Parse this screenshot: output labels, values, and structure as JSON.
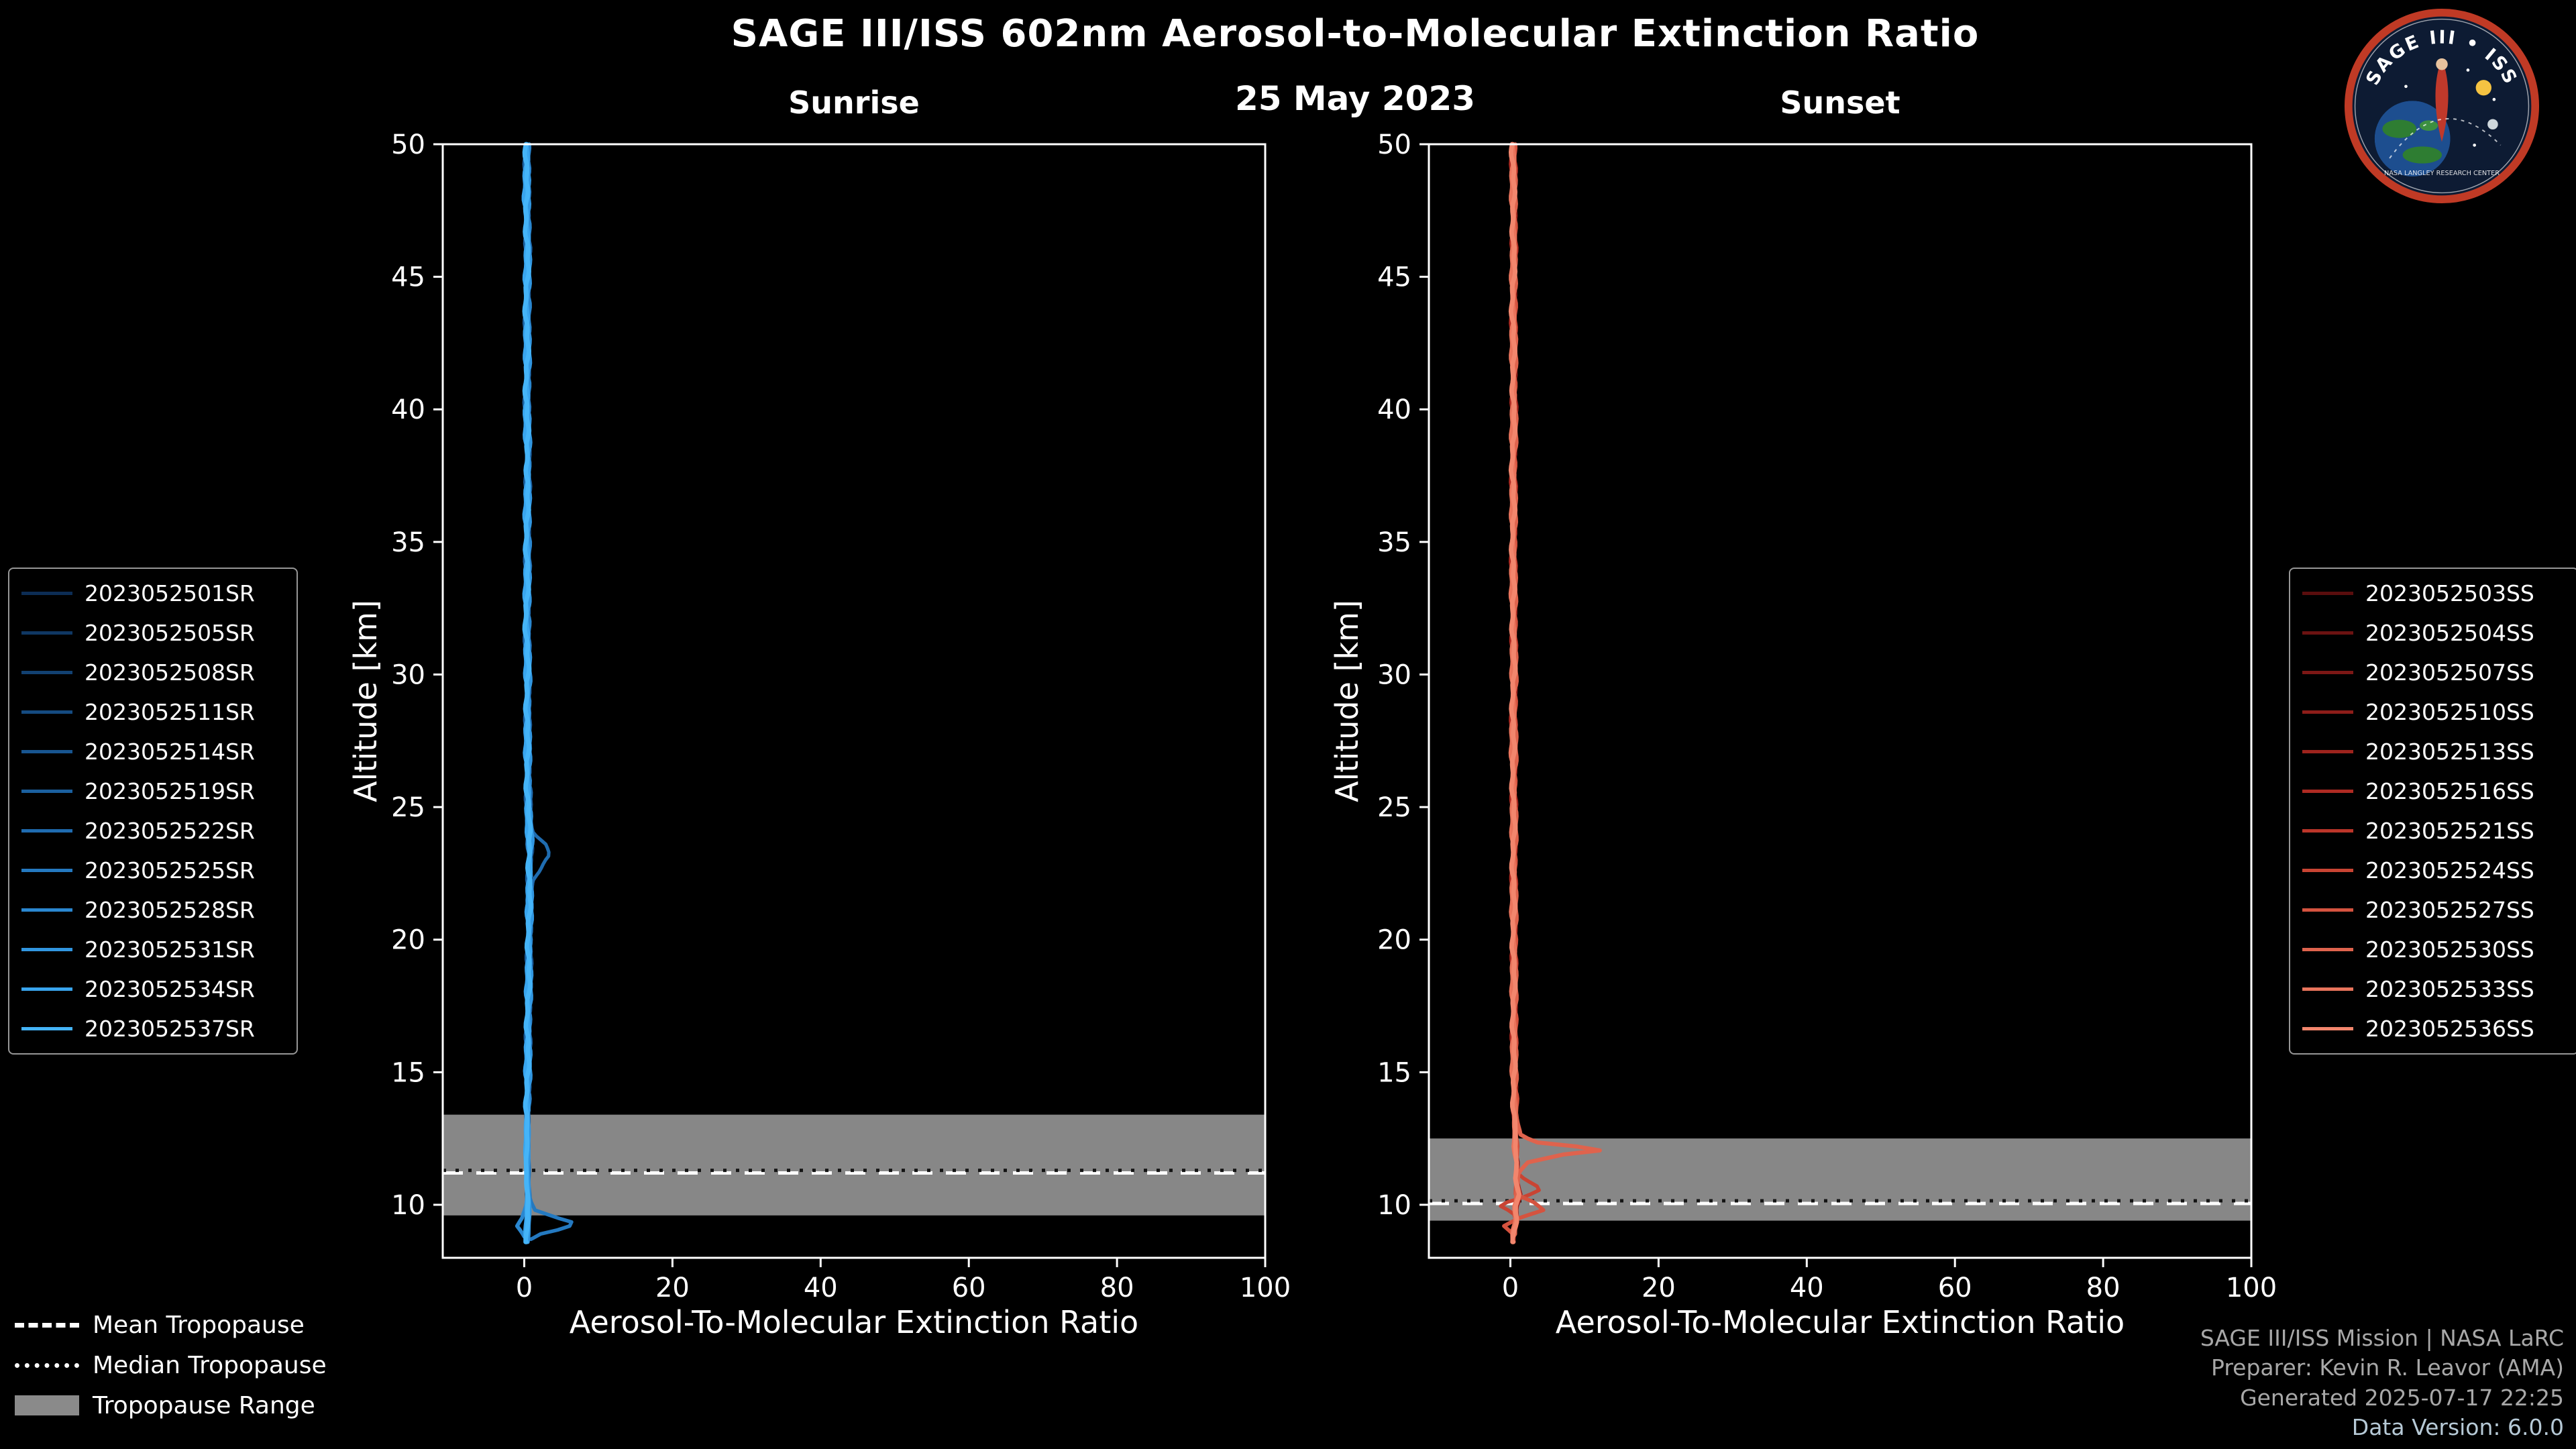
{
  "header": {
    "title": "SAGE III/ISS 602nm Aerosol-to-Molecular Extinction Ratio",
    "date": "25 May 2023"
  },
  "legend": {
    "mean": "Mean Tropopause",
    "median": "Median Tropopause",
    "range": "Tropopause Range"
  },
  "credits": {
    "mission": "SAGE III/ISS Mission | NASA LaRC",
    "preparer": "Preparer: Kevin R. Leavor (AMA)",
    "generated": "Generated 2025-07-17 22:25",
    "version": "Data Version: 6.0.0"
  },
  "logo": {
    "title": "SAGE III • ISS",
    "subtitle": "NASA LANGLEY RESEARCH CENTER"
  },
  "chart_data": [
    {
      "type": "line",
      "title": "Sunrise",
      "xlabel": "Aerosol-To-Molecular Extinction Ratio",
      "ylabel": "Altitude [km]",
      "xlim": [
        -11,
        100
      ],
      "ylim": [
        8,
        50
      ],
      "xticks": [
        0,
        20,
        40,
        60,
        80,
        100
      ],
      "yticks": [
        10,
        15,
        20,
        25,
        30,
        35,
        40,
        45,
        50
      ],
      "band_color": "#878787",
      "accent_color": "#2e8cd3",
      "noise": [
        0.28,
        0.1
      ],
      "tropopause": {
        "mean": 11.2,
        "median": 11.3,
        "range": [
          9.6,
          13.4
        ]
      },
      "default_profile": [
        [
          50,
          0.4
        ],
        [
          48,
          0.3
        ],
        [
          46,
          0.5
        ],
        [
          44,
          0.35
        ],
        [
          42,
          0.45
        ],
        [
          40,
          0.35
        ],
        [
          38,
          0.55
        ],
        [
          36,
          0.4
        ],
        [
          34,
          0.45
        ],
        [
          32,
          0.35
        ],
        [
          30,
          0.5
        ],
        [
          28,
          0.45
        ],
        [
          26,
          0.5
        ],
        [
          24.5,
          0.6
        ],
        [
          23.5,
          0.85
        ],
        [
          22.5,
          0.75
        ],
        [
          21,
          0.7
        ],
        [
          19,
          0.65
        ],
        [
          17,
          0.55
        ],
        [
          15,
          0.5
        ],
        [
          13.5,
          0.45
        ],
        [
          12.5,
          0.4
        ],
        [
          11.5,
          0.35
        ],
        [
          10.8,
          0.45
        ],
        [
          10.2,
          0.55
        ],
        [
          9.6,
          0.5
        ],
        [
          9.1,
          0.4
        ],
        [
          8.6,
          0.3
        ]
      ],
      "series": [
        {
          "name": "2023052501SR",
          "color": "#0c2d55",
          "profile": null
        },
        {
          "name": "2023052505SR",
          "color": "#0f3763",
          "profile": null
        },
        {
          "name": "2023052508SR",
          "color": "#124172",
          "profile": null
        },
        {
          "name": "2023052511SR",
          "color": "#154b81",
          "profile": null
        },
        {
          "name": "2023052514SR",
          "color": "#185590",
          "profile": null
        },
        {
          "name": "2023052519SR",
          "color": "#1b609f",
          "profile": null
        },
        {
          "name": "2023052522SR",
          "color": "#1f6cb0",
          "profile": [
            [
              50,
              0.4
            ],
            [
              46,
              0.5
            ],
            [
              42,
              0.4
            ],
            [
              38,
              0.5
            ],
            [
              34,
              0.4
            ],
            [
              30,
              0.5
            ],
            [
              27,
              0.6
            ],
            [
              25,
              0.8
            ],
            [
              24.5,
              0.9
            ],
            [
              24,
              1.6
            ],
            [
              23.6,
              3.0
            ],
            [
              23.2,
              3.6
            ],
            [
              22.8,
              2.4
            ],
            [
              22.3,
              1.2
            ],
            [
              21,
              0.8
            ],
            [
              19,
              0.7
            ],
            [
              17,
              0.6
            ],
            [
              15,
              0.5
            ],
            [
              13,
              0.4
            ],
            [
              12,
              0.4
            ],
            [
              11,
              0.4
            ],
            [
              10,
              0.5
            ],
            [
              9.4,
              0.4
            ],
            [
              8.8,
              0.3
            ]
          ]
        },
        {
          "name": "2023052525SR",
          "color": "#2479c0",
          "profile": [
            [
              50,
              0.5
            ],
            [
              45,
              0.4
            ],
            [
              40,
              0.5
            ],
            [
              35,
              0.4
            ],
            [
              30,
              0.5
            ],
            [
              25,
              0.6
            ],
            [
              23,
              0.8
            ],
            [
              20,
              0.8
            ],
            [
              17,
              0.6
            ],
            [
              14,
              0.5
            ],
            [
              12.5,
              0.5
            ],
            [
              11.5,
              0.6
            ],
            [
              10.8,
              0.7
            ],
            [
              10.2,
              0.8
            ],
            [
              9.8,
              1.5
            ],
            [
              9.5,
              4.5
            ],
            [
              9.3,
              6.9
            ],
            [
              9.1,
              5.2
            ],
            [
              8.9,
              2.2
            ],
            [
              8.7,
              0.9
            ]
          ]
        },
        {
          "name": "2023052528SR",
          "color": "#2a87d0",
          "profile": [
            [
              50,
              0.4
            ],
            [
              45,
              0.5
            ],
            [
              40,
              0.4
            ],
            [
              35,
              0.5
            ],
            [
              30,
              0.4
            ],
            [
              25,
              0.5
            ],
            [
              20,
              0.6
            ],
            [
              15,
              0.5
            ],
            [
              13,
              0.4
            ],
            [
              12,
              0.3
            ],
            [
              11,
              0.3
            ],
            [
              10.4,
              0.3
            ],
            [
              9.9,
              0.1
            ],
            [
              9.5,
              -0.3
            ],
            [
              9.2,
              -1.0
            ],
            [
              9.0,
              -0.5
            ],
            [
              8.8,
              0.0
            ]
          ]
        },
        {
          "name": "2023052531SR",
          "color": "#3196e0",
          "profile": null
        },
        {
          "name": "2023052534SR",
          "color": "#39a5ee",
          "profile": null
        },
        {
          "name": "2023052537SR",
          "color": "#45b4f8",
          "profile": null
        }
      ]
    },
    {
      "type": "line",
      "title": "Sunset",
      "xlabel": "Aerosol-To-Molecular Extinction Ratio",
      "ylabel": "Altitude [km]",
      "xlim": [
        -11,
        100
      ],
      "ylim": [
        8,
        50
      ],
      "xticks": [
        0,
        20,
        40,
        60,
        80,
        100
      ],
      "yticks": [
        10,
        15,
        20,
        25,
        30,
        35,
        40,
        45,
        50
      ],
      "band_color": "#878787",
      "accent_color": "#d5533f",
      "noise": [
        0.28,
        0.1
      ],
      "tropopause": {
        "mean": 10.05,
        "median": 10.15,
        "range": [
          9.4,
          12.5
        ]
      },
      "default_profile": [
        [
          50,
          0.4
        ],
        [
          48,
          0.45
        ],
        [
          46,
          0.5
        ],
        [
          44,
          0.4
        ],
        [
          42,
          0.45
        ],
        [
          40,
          0.5
        ],
        [
          38,
          0.4
        ],
        [
          36,
          0.45
        ],
        [
          34,
          0.4
        ],
        [
          32,
          0.45
        ],
        [
          30,
          0.5
        ],
        [
          28,
          0.4
        ],
        [
          26,
          0.45
        ],
        [
          24,
          0.5
        ],
        [
          22,
          0.45
        ],
        [
          20,
          0.5
        ],
        [
          18,
          0.5
        ],
        [
          16,
          0.5
        ],
        [
          14.5,
          0.55
        ],
        [
          13.5,
          0.6
        ],
        [
          12.8,
          0.75
        ],
        [
          12.2,
          0.65
        ],
        [
          11.6,
          0.95
        ],
        [
          11.0,
          0.8
        ],
        [
          10.4,
          1.25
        ],
        [
          9.9,
          0.7
        ],
        [
          9.4,
          0.9
        ],
        [
          9.0,
          0.5
        ],
        [
          8.6,
          0.4
        ]
      ],
      "series": [
        {
          "name": "2023052503SS",
          "color": "#5a0d0d",
          "profile": null
        },
        {
          "name": "2023052504SS",
          "color": "#6b1211",
          "profile": null
        },
        {
          "name": "2023052507SS",
          "color": "#7c1715",
          "profile": null
        },
        {
          "name": "2023052510SS",
          "color": "#8d1d19",
          "profile": null
        },
        {
          "name": "2023052513SS",
          "color": "#9e231d",
          "profile": null
        },
        {
          "name": "2023052516SS",
          "color": "#ae2a22",
          "profile": null
        },
        {
          "name": "2023052521SS",
          "color": "#bc3529",
          "profile": null
        },
        {
          "name": "2023052524SS",
          "color": "#c94433",
          "profile": [
            [
              50,
              0.5
            ],
            [
              45,
              0.4
            ],
            [
              40,
              0.4
            ],
            [
              35,
              0.5
            ],
            [
              30,
              0.4
            ],
            [
              25,
              0.5
            ],
            [
              20,
              0.5
            ],
            [
              15,
              0.5
            ],
            [
              13,
              0.6
            ],
            [
              12.2,
              0.9
            ],
            [
              11.6,
              0.8
            ],
            [
              11.1,
              1.2
            ],
            [
              10.6,
              4.3
            ],
            [
              10.3,
              2.0
            ],
            [
              10.0,
              -1.6
            ],
            [
              9.7,
              0.4
            ],
            [
              9.3,
              0.8
            ],
            [
              8.9,
              0.5
            ]
          ]
        },
        {
          "name": "2023052527SS",
          "color": "#d5533f",
          "profile": [
            [
              50,
              0.4
            ],
            [
              45,
              0.5
            ],
            [
              40,
              0.4
            ],
            [
              35,
              0.4
            ],
            [
              30,
              0.5
            ],
            [
              25,
              0.4
            ],
            [
              20,
              0.5
            ],
            [
              15,
              0.6
            ],
            [
              13,
              0.7
            ],
            [
              12,
              0.9
            ],
            [
              11.2,
              0.7
            ],
            [
              10.4,
              0.6
            ],
            [
              10.1,
              3.0
            ],
            [
              9.8,
              4.4
            ],
            [
              9.5,
              1.2
            ],
            [
              9.2,
              -0.9
            ],
            [
              8.9,
              0.3
            ]
          ]
        },
        {
          "name": "2023052530SS",
          "color": "#df634d",
          "profile": [
            [
              50,
              0.4
            ],
            [
              45,
              0.4
            ],
            [
              40,
              0.5
            ],
            [
              35,
              0.4
            ],
            [
              30,
              0.5
            ],
            [
              25,
              0.5
            ],
            [
              20,
              0.5
            ],
            [
              15,
              0.5
            ],
            [
              13.5,
              0.7
            ],
            [
              13,
              0.9
            ],
            [
              12.6,
              1.2
            ],
            [
              12.3,
              4.0
            ],
            [
              12.1,
              13.5
            ],
            [
              11.9,
              7.0
            ],
            [
              11.6,
              2.2
            ],
            [
              11.2,
              1.0
            ],
            [
              10.6,
              0.8
            ],
            [
              10.0,
              0.6
            ],
            [
              9.4,
              0.5
            ],
            [
              8.8,
              0.4
            ]
          ]
        },
        {
          "name": "2023052533SS",
          "color": "#e9745c",
          "profile": null
        },
        {
          "name": "2023052536SS",
          "color": "#f2866d",
          "profile": null
        }
      ]
    }
  ]
}
